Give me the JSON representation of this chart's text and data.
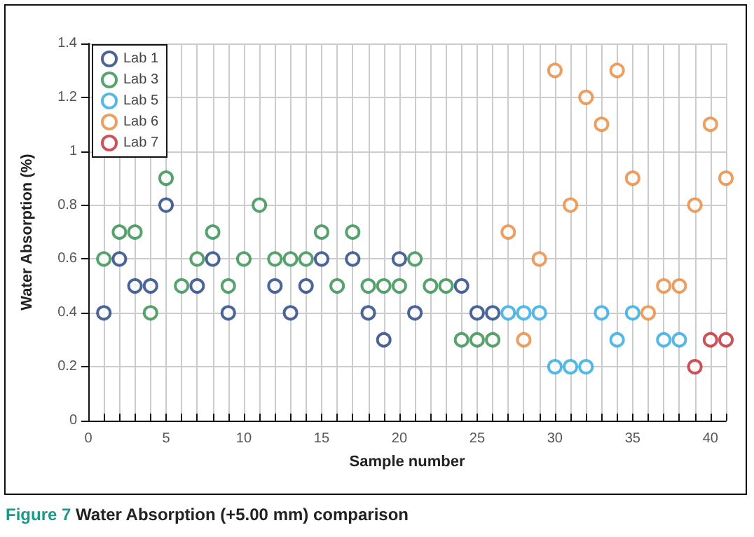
{
  "chart_data": {
    "type": "scatter",
    "title": "Figure 7 Water Absorption (+5.00 mm) comparison",
    "xlabel": "Sample number",
    "ylabel": "Water Absorption (%)",
    "xlim": [
      0,
      41
    ],
    "xticks": [
      0,
      {
        "value": 1,
        "label": null
      },
      {
        "value": 2,
        "label": null
      },
      {
        "value": 3,
        "label": null
      },
      {
        "value": 4,
        "label": null
      },
      5,
      {
        "value": 6,
        "label": null
      },
      {
        "value": 7,
        "label": null
      },
      {
        "value": 8,
        "label": null
      },
      {
        "value": 9,
        "label": null
      },
      10,
      {
        "value": 11,
        "label": null
      },
      {
        "value": 12,
        "label": null
      },
      {
        "value": 13,
        "label": null
      },
      {
        "value": 14,
        "label": null
      },
      15,
      {
        "value": 16,
        "label": null
      },
      {
        "value": 17,
        "label": null
      },
      {
        "value": 18,
        "label": null
      },
      {
        "value": 19,
        "label": null
      },
      20,
      {
        "value": 21,
        "label": null
      },
      {
        "value": 22,
        "label": null
      },
      {
        "value": 23,
        "label": null
      },
      {
        "value": 24,
        "label": null
      },
      25,
      {
        "value": 26,
        "label": null
      },
      {
        "value": 27,
        "label": null
      },
      {
        "value": 28,
        "label": null
      },
      {
        "value": 29,
        "label": null
      },
      30,
      {
        "value": 31,
        "label": null
      },
      {
        "value": 32,
        "label": null
      },
      {
        "value": 33,
        "label": null
      },
      {
        "value": 34,
        "label": null
      },
      35,
      {
        "value": 36,
        "label": null
      },
      {
        "value": 37,
        "label": null
      },
      {
        "value": 38,
        "label": null
      },
      {
        "value": 39,
        "label": null
      },
      40,
      {
        "value": 41,
        "label": null
      }
    ],
    "ylim": [
      0,
      1.4
    ],
    "yticks": [
      0,
      0.2,
      0.4,
      0.6,
      0.8,
      1.0,
      1.2,
      1.4
    ],
    "grid": true,
    "legend": "top left",
    "marker": "circle",
    "series": [
      {
        "name": "Lab 1",
        "color": "#1f3f7f",
        "x": [
          1,
          2,
          3,
          4,
          5,
          7,
          8,
          9,
          12,
          13,
          14,
          15,
          17,
          18,
          19,
          20,
          21,
          24,
          25,
          26
        ],
        "values": [
          0.4,
          0.6,
          0.5,
          0.5,
          0.8,
          0.5,
          0.6,
          0.4,
          0.5,
          0.4,
          0.5,
          0.6,
          0.6,
          0.4,
          0.3,
          0.6,
          0.4,
          0.5,
          0.4,
          0.4
        ]
      },
      {
        "name": "Lab 3",
        "color": "#2e8b4a",
        "x": [
          1,
          2,
          3,
          4,
          5,
          6,
          7,
          8,
          9,
          10,
          11,
          12,
          13,
          14,
          15,
          16,
          17,
          18,
          19,
          20,
          21,
          22,
          23,
          24,
          25,
          26
        ],
        "values": [
          0.6,
          0.7,
          0.7,
          0.4,
          0.9,
          0.5,
          0.6,
          0.7,
          0.5,
          0.6,
          0.8,
          0.6,
          0.6,
          0.6,
          0.7,
          0.5,
          0.7,
          0.5,
          0.5,
          0.5,
          0.6,
          0.5,
          0.5,
          0.3,
          0.3,
          0.3
        ]
      },
      {
        "name": "Lab 5",
        "color": "#29a8e0",
        "x": [
          27,
          28,
          29,
          30,
          31,
          32,
          33,
          34,
          35,
          37,
          38
        ],
        "values": [
          0.4,
          0.4,
          0.4,
          0.2,
          0.2,
          0.2,
          0.4,
          0.3,
          0.4,
          0.3,
          0.3
        ]
      },
      {
        "name": "Lab 6",
        "color": "#e8873a",
        "x": [
          27,
          28,
          29,
          30,
          31,
          32,
          33,
          34,
          35,
          36,
          37,
          38,
          39,
          40,
          41
        ],
        "values": [
          0.7,
          0.3,
          0.6,
          1.3,
          0.8,
          1.2,
          1.1,
          1.3,
          0.9,
          0.4,
          0.5,
          0.5,
          0.8,
          1.1,
          0.9
        ]
      },
      {
        "name": "Lab 7",
        "color": "#c0272d",
        "x": [
          39,
          40,
          41
        ],
        "values": [
          0.2,
          0.3,
          0.3
        ]
      }
    ]
  }
}
